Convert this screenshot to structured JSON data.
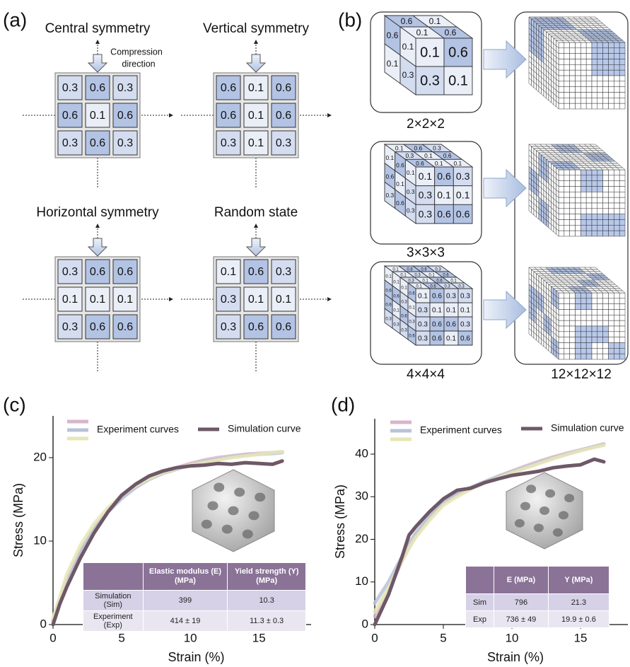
{
  "panel_a": {
    "label": "(a)",
    "compression_label": [
      "Compression",
      "direction"
    ],
    "grids": [
      {
        "title": "Central symmetry",
        "cells": [
          [
            0.3,
            0.6,
            0.3
          ],
          [
            0.6,
            0.1,
            0.6
          ],
          [
            0.3,
            0.6,
            0.3
          ]
        ]
      },
      {
        "title": "Vertical symmetry",
        "cells": [
          [
            0.6,
            0.1,
            0.6
          ],
          [
            0.6,
            0.1,
            0.6
          ],
          [
            0.3,
            0.1,
            0.3
          ]
        ]
      },
      {
        "title": "Horizontal symmetry",
        "cells": [
          [
            0.3,
            0.6,
            0.6
          ],
          [
            0.1,
            0.1,
            0.1
          ],
          [
            0.3,
            0.6,
            0.6
          ]
        ]
      },
      {
        "title": "Random state",
        "cells": [
          [
            0.1,
            0.6,
            0.3
          ],
          [
            0.3,
            0.1,
            0.1
          ],
          [
            0.3,
            0.6,
            0.6
          ]
        ]
      }
    ]
  },
  "panel_b": {
    "label": "(b)",
    "cubes": [
      {
        "label": "2×2×2",
        "front": [
          [
            0.1,
            0.6
          ],
          [
            0.3,
            0.1
          ]
        ],
        "top": [
          [
            0.6,
            0.1
          ],
          [
            0.1,
            0.6
          ]
        ],
        "side": [
          [
            0.6,
            0.1
          ],
          [
            0.1,
            0.3
          ]
        ]
      },
      {
        "label": "3×3×3",
        "front": [
          [
            0.1,
            0.6,
            0.3
          ],
          [
            0.3,
            0.1,
            0.1
          ],
          [
            0.3,
            0.6,
            0.6
          ]
        ],
        "top": [
          [
            0.1,
            0.6,
            0.3
          ],
          [
            0.3,
            0.1,
            0.6
          ],
          [
            0.6,
            0.1,
            0.1
          ]
        ],
        "side": [
          [
            0.1,
            0.6,
            0.1
          ],
          [
            0.6,
            0.1,
            0.3
          ],
          [
            0.3,
            0.6,
            0.3
          ]
        ]
      },
      {
        "label": "4×4×4",
        "front": [
          [
            0.1,
            0.6,
            0.3,
            0.3
          ],
          [
            0.3,
            0.1,
            0.1,
            0.1
          ],
          [
            0.3,
            0.6,
            0.6,
            0.3
          ],
          [
            0.3,
            0.6,
            0.1,
            0.6
          ]
        ],
        "top": [
          [
            0.1,
            0.6,
            0.6,
            0.3
          ],
          [
            0.1,
            0.3,
            0.1,
            0.6
          ],
          [
            0.3,
            0.1,
            0.6,
            0.1
          ],
          [
            0.1,
            0.6,
            0.3,
            0.3
          ]
        ],
        "side": [
          [
            0.1,
            0.1,
            0.1,
            0.6
          ],
          [
            0.6,
            0.6,
            0.3,
            0.1
          ],
          [
            0.6,
            0.1,
            0.6,
            0.3
          ],
          [
            0.3,
            0.3,
            0.3,
            0.6
          ]
        ]
      }
    ],
    "result_label": "12×12×12"
  },
  "chart_data": [
    {
      "type": "line",
      "label": "(c)",
      "xlabel": "Strain (%)",
      "ylabel": "Stress (MPa)",
      "x": [
        0,
        0.5,
        1,
        2,
        3,
        4,
        5,
        6,
        7,
        8,
        9,
        10,
        11,
        12,
        13,
        14,
        15,
        16,
        16.7
      ],
      "series": [
        {
          "color": "#d9b5ca",
          "values": [
            0.5,
            3,
            5.5,
            9,
            11.7,
            13.7,
            15.3,
            16.5,
            17.5,
            18.2,
            18.8,
            19.3,
            19.7,
            20,
            20.2,
            20.4,
            20.5,
            20.6,
            20.7
          ]
        },
        {
          "name": "Experiment curves",
          "color": "#b9c3d7",
          "values": [
            0.3,
            2.8,
            5.2,
            8.8,
            11.5,
            13.5,
            15.1,
            16.4,
            17.4,
            18.1,
            18.6,
            19.1,
            19.5,
            19.8,
            20.1,
            20.3,
            20.4,
            20.5,
            20.6
          ]
        },
        {
          "color": "#e7e7b5",
          "values": [
            0.8,
            3.3,
            6,
            9.5,
            12.1,
            14,
            15.5,
            16.6,
            17.5,
            18.2,
            18.7,
            19.1,
            19.4,
            19.7,
            20,
            20.2,
            20.4,
            20.6,
            20.7
          ]
        },
        {
          "name": "Simulation curve",
          "color": "#6e5867",
          "values": [
            0,
            2.5,
            4.5,
            8,
            11,
            13.5,
            15.5,
            16.8,
            17.8,
            18.4,
            18.8,
            19,
            19.1,
            19.3,
            19.2,
            19.4,
            19.3,
            19.2,
            19.6
          ]
        }
      ],
      "xlim": [
        0,
        18.8
      ],
      "ylim": [
        0,
        25
      ],
      "xticks": [
        0,
        5,
        10,
        15
      ],
      "yticks": [
        0,
        10,
        20
      ],
      "table": {
        "header": [
          "Elastic modulus (E) (MPa)",
          "Yield strength (Y) (MPa)"
        ],
        "rows": [
          [
            "Simulation (Sim)",
            399,
            10.3
          ],
          [
            "Experiment (Exp)",
            "414 ± 19",
            "11.3 ± 0.3"
          ]
        ]
      }
    },
    {
      "type": "line",
      "label": "(d)",
      "xlabel": "Strain (%)",
      "ylabel": "Stress (MPa)",
      "x": [
        0,
        1,
        2,
        2.5,
        3,
        4,
        5,
        6,
        7,
        8,
        9,
        10,
        11,
        12,
        13,
        14,
        15,
        16,
        16.7
      ],
      "series": [
        {
          "color": "#d9b5ca",
          "values": [
            2,
            8,
            15,
            18,
            21,
            25,
            28.5,
            30.5,
            32,
            33.5,
            34.8,
            36,
            37.2,
            38.3,
            39.3,
            40.2,
            41,
            41.8,
            42.4
          ]
        },
        {
          "name": "Experiment curves",
          "color": "#b9c3d7",
          "values": [
            5,
            10,
            16,
            19,
            21.5,
            25.5,
            28.8,
            30.8,
            32.2,
            33.5,
            34.7,
            35.8,
            36.9,
            38,
            39,
            40,
            40.9,
            41.7,
            42.2
          ]
        },
        {
          "color": "#e7e7b5",
          "values": [
            3,
            8.5,
            15,
            18,
            20.5,
            24.5,
            28,
            30,
            31.8,
            33.2,
            34.4,
            35.6,
            36.7,
            37.8,
            38.9,
            39.9,
            40.8,
            41.6,
            42.1
          ]
        },
        {
          "name": "Simulation curve",
          "color": "#6e5867",
          "values": [
            0,
            7,
            16,
            21,
            23,
            26.5,
            29.5,
            31.5,
            32,
            33.3,
            34.2,
            35,
            35.5,
            36,
            36.8,
            37.2,
            37.5,
            38.8,
            38.2
          ]
        }
      ],
      "xlim": [
        0,
        18.45
      ],
      "ylim": [
        0,
        48.3
      ],
      "xticks": [
        0,
        5,
        10,
        15
      ],
      "yticks": [
        0,
        10,
        20,
        30,
        40
      ],
      "table": {
        "header": [
          "E (MPa)",
          "Y (MPa)"
        ],
        "rows": [
          [
            "Sim",
            796,
            21.3
          ],
          [
            "Exp",
            "736 ± 49",
            "19.9 ± 0.6"
          ]
        ]
      }
    }
  ]
}
